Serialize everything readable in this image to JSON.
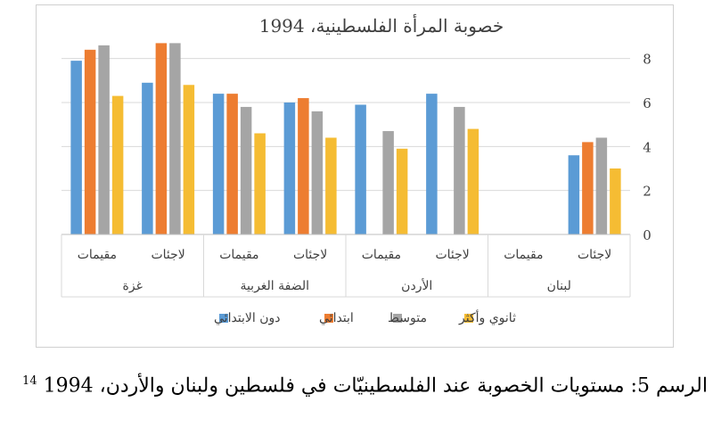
{
  "chart_data": {
    "type": "bar",
    "title": "خصوبة المرأة الفلسطينية، 1994",
    "ylim": [
      0,
      9
    ],
    "yticks": [
      0,
      2,
      4,
      6,
      8
    ],
    "grid": true,
    "legend_position": "bottom",
    "groups": [
      {
        "name": "لبنان",
        "categories": [
          "لاجئات",
          "مقيمات"
        ]
      },
      {
        "name": "الأردن",
        "categories": [
          "لاجئات",
          "مقيمات"
        ]
      },
      {
        "name": "الضفة الغربية",
        "categories": [
          "لاجئات",
          "مقيمات"
        ]
      },
      {
        "name": "غزة",
        "categories": [
          "لاجئات",
          "مقيمات"
        ]
      }
    ],
    "series": [
      {
        "name": "ثانوي وأكثر",
        "color": "#F5BC33",
        "values": [
          3.0,
          null,
          4.8,
          3.9,
          4.4,
          4.6,
          6.8,
          6.3
        ]
      },
      {
        "name": "متوسط",
        "color": "#A5A5A5",
        "values": [
          4.4,
          null,
          5.8,
          4.7,
          5.6,
          5.8,
          8.7,
          8.6
        ]
      },
      {
        "name": "ابتدائي",
        "color": "#ED7D31",
        "values": [
          4.2,
          null,
          null,
          null,
          6.2,
          6.4,
          8.7,
          8.4
        ]
      },
      {
        "name": "دون الابتدائي",
        "color": "#5B9BD5",
        "values": [
          3.6,
          null,
          6.4,
          5.9,
          6.0,
          6.4,
          6.9,
          7.9
        ]
      }
    ]
  },
  "caption": {
    "text": "الرسم 5: مستويات الخصوبة عند الفلسطينيّات في فلسطين ولبنان والأردن، 1994",
    "footnote": "14"
  }
}
